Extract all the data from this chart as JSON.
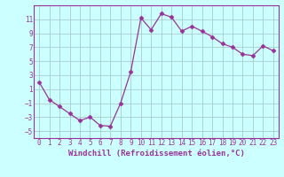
{
  "x": [
    0,
    1,
    2,
    3,
    4,
    5,
    6,
    7,
    8,
    9,
    10,
    11,
    12,
    13,
    14,
    15,
    16,
    17,
    18,
    19,
    20,
    21,
    22,
    23
  ],
  "y": [
    2,
    -0.5,
    -1.5,
    -2.5,
    -3.5,
    -3,
    -4.2,
    -4.3,
    -1,
    3.5,
    11.2,
    9.5,
    11.8,
    11.3,
    9.3,
    10,
    9.3,
    8.5,
    7.5,
    7,
    6,
    5.8,
    7.2,
    6.5
  ],
  "line_color": "#993399",
  "marker": "D",
  "marker_size": 2.5,
  "bg_color": "#ccffff",
  "grid_color": "#aacccc",
  "xlabel": "Windchill (Refroidissement éolien,°C)",
  "xlim": [
    -0.5,
    23.5
  ],
  "ylim": [
    -6,
    13
  ],
  "yticks": [
    -5,
    -3,
    -1,
    1,
    3,
    5,
    7,
    9,
    11
  ],
  "xticks": [
    0,
    1,
    2,
    3,
    4,
    5,
    6,
    7,
    8,
    9,
    10,
    11,
    12,
    13,
    14,
    15,
    16,
    17,
    18,
    19,
    20,
    21,
    22,
    23
  ],
  "tick_fontsize": 5.5,
  "xlabel_fontsize": 6.5
}
